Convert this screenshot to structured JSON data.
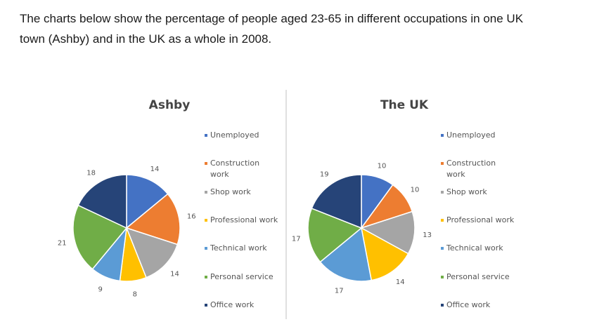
{
  "intro": {
    "line1": "The charts below show the percentage of people aged 23-65 in different occupations in one UK",
    "line2": "town (Ashby) and in the UK as a whole in 2008."
  },
  "legend": [
    {
      "label": [
        "Unemployed"
      ],
      "color": "#4472C4"
    },
    {
      "label": [
        "Construction",
        "work"
      ],
      "color": "#ED7D31"
    },
    {
      "label": [
        "Shop work"
      ],
      "color": "#A5A5A5"
    },
    {
      "label": [
        "Professional work"
      ],
      "color": "#FFC000"
    },
    {
      "label": [
        "Technical work"
      ],
      "color": "#5B9BD5"
    },
    {
      "label": [
        "Personal service"
      ],
      "color": "#70AD47"
    },
    {
      "label": [
        "Office work"
      ],
      "color": "#264478"
    }
  ],
  "chart_data": [
    {
      "type": "pie",
      "title": "Ashby",
      "categories": [
        "Unemployed",
        "Construction work",
        "Shop work",
        "Professional work",
        "Technical work",
        "Personal service",
        "Office work"
      ],
      "values": [
        14,
        16,
        14,
        8,
        9,
        21,
        18
      ],
      "colors": [
        "#4472C4",
        "#ED7D31",
        "#A5A5A5",
        "#FFC000",
        "#5B9BD5",
        "#70AD47",
        "#264478"
      ],
      "legend_position": "right"
    },
    {
      "type": "pie",
      "title": "The UK",
      "categories": [
        "Unemployed",
        "Construction work",
        "Shop work",
        "Professional work",
        "Technical work",
        "Personal service",
        "Office work"
      ],
      "values": [
        10,
        10,
        13,
        14,
        17,
        17,
        19
      ],
      "colors": [
        "#4472C4",
        "#ED7D31",
        "#A5A5A5",
        "#FFC000",
        "#5B9BD5",
        "#70AD47",
        "#264478"
      ],
      "legend_position": "right"
    }
  ]
}
